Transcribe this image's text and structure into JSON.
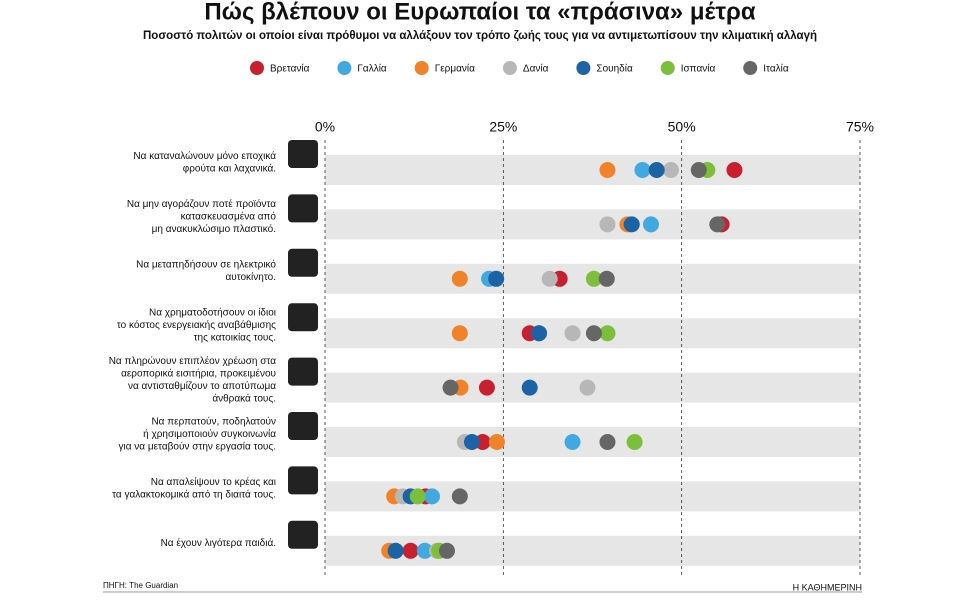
{
  "chart_data": {
    "type": "dot",
    "title": "Πώς βλέπουν οι Ευρωπαίοι τα «πράσινα» μέτρα",
    "subtitle": "Ποσοστό πολιτών οι οποίοι είναι πρόθυμοι να αλλάξουν τον τρόπο ζωής τους για να αντιμετωπίσουν την κλιματική αλλαγή",
    "source": "ΠΗΓΗ: The Guardian",
    "publisher": "Η ΚΑΘΗΜΕΡΙΝΗ",
    "categories": [
      "Να καταναλώνουν μόνο εποχικά\nφρούτα και λαχανικά.",
      "Να μην αγοράζουν ποτέ προϊόντα\nκατασκευασμένα από\nμη ανακυκλώσιμο πλαστικό.",
      "Να μεταπηδήσουν σε ηλεκτρικό\nαυτοκίνητο.",
      "Να χρηματοδοτήσουν οι ίδιοι\nτο κόστος ενεργειακής αναβάθμισης\nτης κατοικίας τους.",
      "Να πληρώνουν επιπλέον χρέωση στα\nαεροπορικά εισιτήρια, προκειμένου\nνα αντισταθμίζουν το αποτύπωμα\nάνθρακά τους.",
      "Να περπατούν, ποδηλατούν\nή χρησιμοποιούν συγκοινωνία\nγια να μεταβούν στην εργασία τους.",
      "Να απαλείψουν το κρέας και\nτα γαλακτοκομικά από τη διαιτά τους.",
      "Να έχουν λιγότερα παιδιά."
    ],
    "series": [
      {
        "name": "Βρετανία",
        "color": "#c8202f",
        "values": [
          57.4,
          55.6,
          32.9,
          28.7,
          22.7,
          22.1,
          14.1,
          12
        ]
      },
      {
        "name": "Γαλλία",
        "color": "#41a9e0",
        "values": [
          44.5,
          45.7,
          23,
          30,
          null,
          34.7,
          15,
          14
        ]
      },
      {
        "name": "Γερμανία",
        "color": "#f0822a",
        "values": [
          39.6,
          42.4,
          18.9,
          18.9,
          19,
          24.1,
          9.7,
          9
        ]
      },
      {
        "name": "Δανία",
        "color": "#b7b7b7",
        "values": [
          48.5,
          39.6,
          31.5,
          34.7,
          36.8,
          19.6,
          10.9,
          15.7
        ]
      },
      {
        "name": "Σουηδία",
        "color": "#1b63a5",
        "values": [
          46.5,
          43,
          24,
          30,
          28.7,
          20.6,
          12,
          9.9
        ]
      },
      {
        "name": "Ισπανία",
        "color": "#7bbf3a",
        "values": [
          53.6,
          null,
          37.7,
          39.6,
          null,
          43.4,
          13,
          16
        ]
      },
      {
        "name": "Ιταλία",
        "color": "#666666",
        "values": [
          52.4,
          55,
          39.5,
          37.7,
          17.6,
          39.6,
          18.9,
          17.1
        ]
      }
    ],
    "xlim": [
      0,
      75
    ],
    "xticks": [
      {
        "value": 0,
        "label": "0%"
      },
      {
        "value": 25,
        "label": "25%"
      },
      {
        "value": 50,
        "label": "50%"
      },
      {
        "value": 75,
        "label": "75%"
      }
    ],
    "grid": true
  }
}
